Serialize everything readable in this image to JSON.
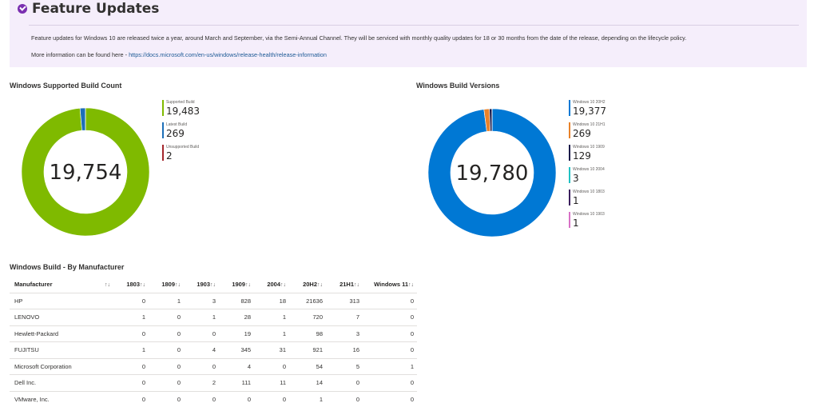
{
  "header": {
    "title": "Feature Updates",
    "description": "Feature updates for Windows 10 are released twice a year, around March and September, via the Semi-Annual Channel. They will be serviced with monthly quality updates for 18 or 30 months from the date of the release, depending on the lifecycle policy.",
    "more_info_prefix": "More information can be found here - ",
    "more_info_link": "https://docs.microsoft.com/en-us/windows/release-health/release-information"
  },
  "build_count": {
    "title": "Windows Supported Build Count",
    "total": "19,754",
    "legend": [
      {
        "label": "Supported Build",
        "value": "19,483",
        "color": "#7fba00"
      },
      {
        "label": "Latest Build",
        "value": "269",
        "color": "#1d6fb8"
      },
      {
        "label": "Unsupported Build",
        "value": "2",
        "color": "#a4262c"
      }
    ]
  },
  "build_versions": {
    "title": "Windows Build Versions",
    "total": "19,780",
    "legend": [
      {
        "label": "Windows 10 20H2",
        "value": "19,377",
        "color": "#0078d4"
      },
      {
        "label": "Windows 10 21H1",
        "value": "269",
        "color": "#e8822a"
      },
      {
        "label": "Windows 10 1909",
        "value": "129",
        "color": "#1b1b4a"
      },
      {
        "label": "Windows 10 2004",
        "value": "3",
        "color": "#22c1c3"
      },
      {
        "label": "Windows 10 1803",
        "value": "1",
        "color": "#3b1f5e"
      },
      {
        "label": "Windows 10 1903",
        "value": "1",
        "color": "#d871c6"
      }
    ]
  },
  "chart_data": [
    {
      "type": "pie",
      "title": "Windows Supported Build Count",
      "categories": [
        "Supported Build",
        "Latest Build",
        "Unsupported Build"
      ],
      "values": [
        19483,
        269,
        2
      ]
    },
    {
      "type": "pie",
      "title": "Windows Build Versions",
      "categories": [
        "Windows 10 20H2",
        "Windows 10 21H1",
        "Windows 10 1909",
        "Windows 10 2004",
        "Windows 10 1803",
        "Windows 10 1903"
      ],
      "values": [
        19377,
        269,
        129,
        3,
        1,
        1
      ]
    }
  ],
  "table": {
    "title": "Windows Build - By Manufacturer",
    "sort_glyph": "↑↓",
    "columns": [
      "Manufacturer",
      "",
      "1803",
      "1809",
      "1903",
      "1909",
      "2004",
      "20H2",
      "21H1",
      "Windows 11"
    ],
    "rows": [
      [
        "HP",
        "",
        "0",
        "1",
        "3",
        "828",
        "18",
        "21636",
        "313",
        "0"
      ],
      [
        "LENOVO",
        "",
        "1",
        "0",
        "1",
        "28",
        "1",
        "720",
        "7",
        "0"
      ],
      [
        "Hewlett-Packard",
        "",
        "0",
        "0",
        "0",
        "19",
        "1",
        "98",
        "3",
        "0"
      ],
      [
        "FUJITSU",
        "",
        "1",
        "0",
        "4",
        "345",
        "31",
        "921",
        "16",
        "0"
      ],
      [
        "Microsoft Corporation",
        "",
        "0",
        "0",
        "0",
        "4",
        "0",
        "54",
        "5",
        "1"
      ],
      [
        "Dell Inc.",
        "",
        "0",
        "0",
        "2",
        "111",
        "11",
        "14",
        "0",
        "0"
      ],
      [
        "VMware, Inc.",
        "",
        "0",
        "0",
        "0",
        "0",
        "0",
        "1",
        "0",
        "0"
      ]
    ]
  }
}
